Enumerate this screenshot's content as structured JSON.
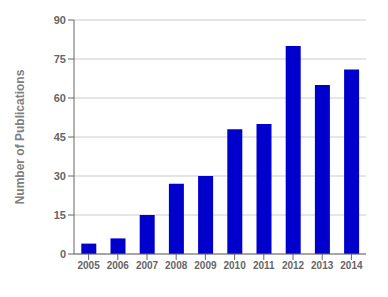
{
  "chart_data": {
    "type": "bar",
    "categories": [
      "2005",
      "2006",
      "2007",
      "2008",
      "2009",
      "2010",
      "2011",
      "2012",
      "2013",
      "2014"
    ],
    "values": [
      4,
      6,
      15,
      27,
      30,
      48,
      50,
      80,
      65,
      71
    ],
    "color": "#0000CD",
    "ylabel": "Number of Publications",
    "ylim": [
      0,
      90
    ],
    "yticks": [
      0,
      15,
      30,
      45,
      60,
      75,
      90
    ],
    "grid": true
  }
}
